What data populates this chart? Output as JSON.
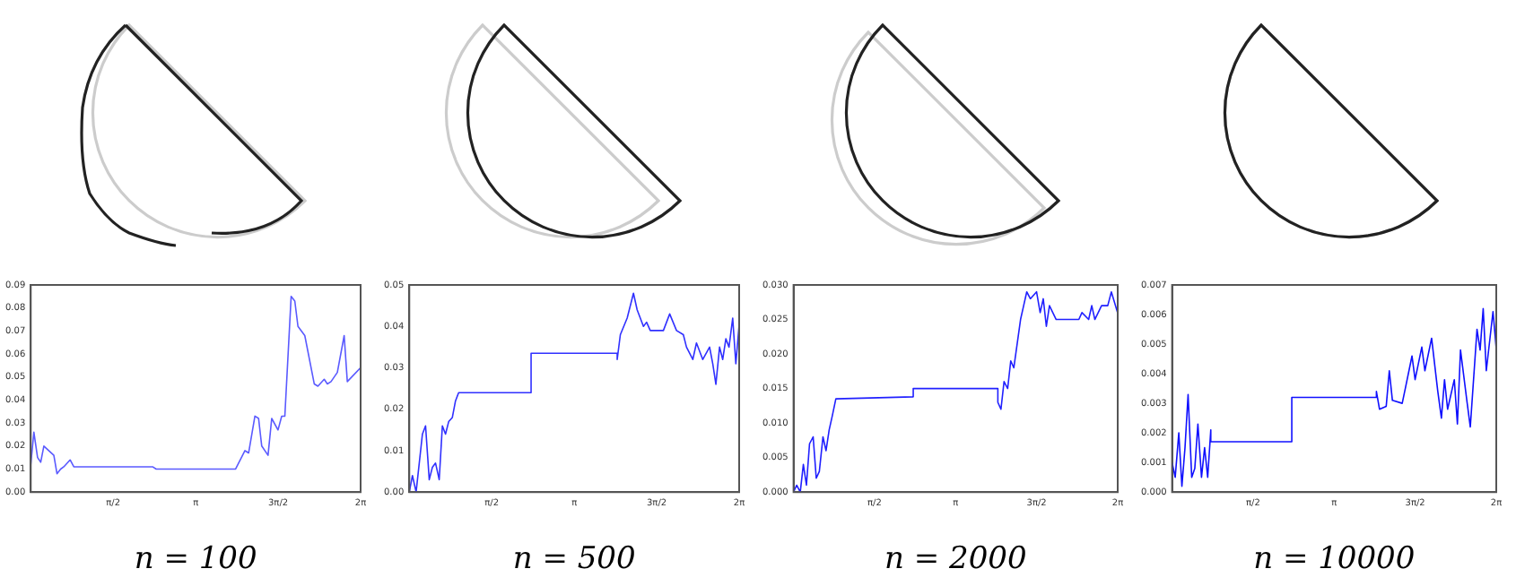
{
  "chart_data": [
    {
      "type": "line",
      "xlabel": "n = 100",
      "xlim": [
        0,
        6.2832
      ],
      "xticks": [
        {
          "value": 1.5708,
          "label": "π/2"
        },
        {
          "value": 3.1416,
          "label": "π"
        },
        {
          "value": 4.7124,
          "label": "3π/2"
        },
        {
          "value": 6.2832,
          "label": "2π"
        }
      ],
      "ylim": [
        0,
        0.09
      ],
      "yticks": [
        {
          "value": 0,
          "label": "0.00"
        },
        {
          "value": 0.01,
          "label": "0.01"
        },
        {
          "value": 0.02,
          "label": "0.02"
        },
        {
          "value": 0.03,
          "label": "0.03"
        },
        {
          "value": 0.04,
          "label": "0.04"
        },
        {
          "value": 0.05,
          "label": "0.05"
        },
        {
          "value": 0.06,
          "label": "0.06"
        },
        {
          "value": 0.07,
          "label": "0.07"
        },
        {
          "value": 0.08,
          "label": "0.08"
        },
        {
          "value": 0.09,
          "label": "0.09"
        }
      ],
      "grid": false,
      "series": [
        {
          "color": "#5a5aff",
          "x": [
            0,
            0.06,
            0.13,
            0.19,
            0.25,
            0.44,
            0.5,
            0.57,
            0.63,
            0.75,
            0.82,
            2.32,
            2.39,
            3.9,
            4.08,
            4.15,
            4.27,
            4.34,
            4.4,
            4.52,
            4.59,
            4.71,
            4.78,
            4.84,
            4.96,
            5.03,
            5.09,
            5.22,
            5.4,
            5.47,
            5.59,
            5.65,
            5.72,
            5.84,
            5.97,
            6.03,
            6.28
          ],
          "values": [
            0.012,
            0.026,
            0.015,
            0.013,
            0.02,
            0.016,
            0.008,
            0.01,
            0.011,
            0.014,
            0.011,
            0.011,
            0.01,
            0.01,
            0.018,
            0.017,
            0.033,
            0.032,
            0.02,
            0.016,
            0.032,
            0.027,
            0.033,
            0.033,
            0.085,
            0.083,
            0.072,
            0.068,
            0.047,
            0.046,
            0.049,
            0.047,
            0.048,
            0.052,
            0.068,
            0.048,
            0.054
          ]
        }
      ]
    },
    {
      "type": "line",
      "xlabel": "n = 500",
      "xlim": [
        0,
        6.2832
      ],
      "xticks": [
        {
          "value": 1.5708,
          "label": "π/2"
        },
        {
          "value": 3.1416,
          "label": "π"
        },
        {
          "value": 4.7124,
          "label": "3π/2"
        },
        {
          "value": 6.2832,
          "label": "2π"
        }
      ],
      "ylim": [
        0,
        0.05
      ],
      "yticks": [
        {
          "value": 0,
          "label": "0.00"
        },
        {
          "value": 0.01,
          "label": "0.01"
        },
        {
          "value": 0.02,
          "label": "0.02"
        },
        {
          "value": 0.03,
          "label": "0.03"
        },
        {
          "value": 0.04,
          "label": "0.04"
        },
        {
          "value": 0.05,
          "label": "0.05"
        }
      ],
      "grid": false,
      "series": [
        {
          "color": "#3030ff",
          "x": [
            0,
            0.06,
            0.13,
            0.25,
            0.31,
            0.38,
            0.44,
            0.5,
            0.57,
            0.63,
            0.69,
            0.75,
            0.82,
            0.88,
            0.94,
            2.32,
            2.32,
            3.96,
            3.96,
            4.02,
            4.15,
            4.27,
            4.34,
            4.46,
            4.52,
            4.59,
            4.84,
            4.96,
            5.09,
            5.22,
            5.28,
            5.4,
            5.47,
            5.59,
            5.72,
            5.78,
            5.84,
            5.91,
            5.97,
            6.03,
            6.09,
            6.16,
            6.22,
            6.28
          ],
          "values": [
            0,
            0.004,
            0,
            0.014,
            0.016,
            0.003,
            0.006,
            0.007,
            0.003,
            0.016,
            0.014,
            0.017,
            0.018,
            0.022,
            0.024,
            0.024,
            0.0335,
            0.0335,
            0.032,
            0.038,
            0.042,
            0.048,
            0.044,
            0.04,
            0.041,
            0.039,
            0.039,
            0.043,
            0.039,
            0.038,
            0.035,
            0.032,
            0.036,
            0.032,
            0.035,
            0.031,
            0.026,
            0.035,
            0.032,
            0.037,
            0.035,
            0.042,
            0.031,
            0.04
          ]
        }
      ]
    },
    {
      "type": "line",
      "xlabel": "n = 2000",
      "xlim": [
        0,
        6.2832
      ],
      "xticks": [
        {
          "value": 1.5708,
          "label": "π/2"
        },
        {
          "value": 3.1416,
          "label": "π"
        },
        {
          "value": 4.7124,
          "label": "3π/2"
        },
        {
          "value": 6.2832,
          "label": "2π"
        }
      ],
      "ylim": [
        0,
        0.03
      ],
      "yticks": [
        {
          "value": 0,
          "label": "0.000"
        },
        {
          "value": 0.005,
          "label": "0.005"
        },
        {
          "value": 0.01,
          "label": "0.010"
        },
        {
          "value": 0.015,
          "label": "0.015"
        },
        {
          "value": 0.02,
          "label": "0.020"
        },
        {
          "value": 0.025,
          "label": "0.025"
        },
        {
          "value": 0.03,
          "label": "0.030"
        }
      ],
      "grid": false,
      "series": [
        {
          "color": "#2020ff",
          "x": [
            0,
            0.06,
            0.13,
            0.19,
            0.25,
            0.31,
            0.38,
            0.44,
            0.5,
            0.57,
            0.63,
            0.69,
            0.75,
            0.82,
            2.32,
            2.32,
            3.96,
            3.96,
            4.02,
            4.08,
            4.15,
            4.21,
            4.27,
            4.4,
            4.46,
            4.52,
            4.59,
            4.71,
            4.78,
            4.84,
            4.9,
            4.96,
            5.09,
            5.53,
            5.59,
            5.72,
            5.78,
            5.84,
            5.97,
            6.09,
            6.16,
            6.28
          ],
          "values": [
            0,
            0.001,
            0,
            0.004,
            0.001,
            0.007,
            0.008,
            0.002,
            0.003,
            0.008,
            0.006,
            0.009,
            0.011,
            0.0135,
            0.0138,
            0.015,
            0.015,
            0.013,
            0.012,
            0.016,
            0.015,
            0.019,
            0.018,
            0.025,
            0.027,
            0.029,
            0.028,
            0.029,
            0.026,
            0.028,
            0.024,
            0.027,
            0.025,
            0.025,
            0.026,
            0.025,
            0.027,
            0.025,
            0.027,
            0.027,
            0.029,
            0.026
          ]
        }
      ]
    },
    {
      "type": "line",
      "xlabel": "n = 10000",
      "xlim": [
        0,
        6.2832
      ],
      "xticks": [
        {
          "value": 1.5708,
          "label": "π/2"
        },
        {
          "value": 3.1416,
          "label": "π"
        },
        {
          "value": 4.7124,
          "label": "3π/2"
        },
        {
          "value": 6.2832,
          "label": "2π"
        }
      ],
      "ylim": [
        0,
        0.007
      ],
      "yticks": [
        {
          "value": 0,
          "label": "0.000"
        },
        {
          "value": 0.001,
          "label": "0.001"
        },
        {
          "value": 0.002,
          "label": "0.002"
        },
        {
          "value": 0.003,
          "label": "0.003"
        },
        {
          "value": 0.004,
          "label": "0.004"
        },
        {
          "value": 0.005,
          "label": "0.005"
        },
        {
          "value": 0.006,
          "label": "0.006"
        },
        {
          "value": 0.007,
          "label": "0.007"
        }
      ],
      "grid": false,
      "series": [
        {
          "color": "#1010ff",
          "x": [
            0,
            0.06,
            0.13,
            0.19,
            0.25,
            0.31,
            0.38,
            0.44,
            0.5,
            0.57,
            0.63,
            0.69,
            0.75,
            0.75,
            2.32,
            2.32,
            3.96,
            3.96,
            4.02,
            4.15,
            4.21,
            4.27,
            4.46,
            4.52,
            4.65,
            4.71,
            4.84,
            4.9,
            5.03,
            5.15,
            5.22,
            5.28,
            5.34,
            5.47,
            5.53,
            5.59,
            5.72,
            5.78,
            5.91,
            5.97,
            6.03,
            6.09,
            6.22,
            6.28
          ],
          "values": [
            0.001,
            0.0005,
            0.002,
            0.0002,
            0.0015,
            0.0033,
            0.0005,
            0.0008,
            0.0023,
            0.0005,
            0.0015,
            0.0005,
            0.0021,
            0.0017,
            0.0017,
            0.0032,
            0.0032,
            0.0034,
            0.0028,
            0.0029,
            0.0041,
            0.0031,
            0.003,
            0.0035,
            0.0046,
            0.0038,
            0.0049,
            0.0041,
            0.0052,
            0.0034,
            0.0025,
            0.0038,
            0.0028,
            0.0038,
            0.0023,
            0.0048,
            0.003,
            0.0022,
            0.0055,
            0.0048,
            0.0062,
            0.0041,
            0.0061,
            0.0049
          ]
        }
      ]
    }
  ]
}
